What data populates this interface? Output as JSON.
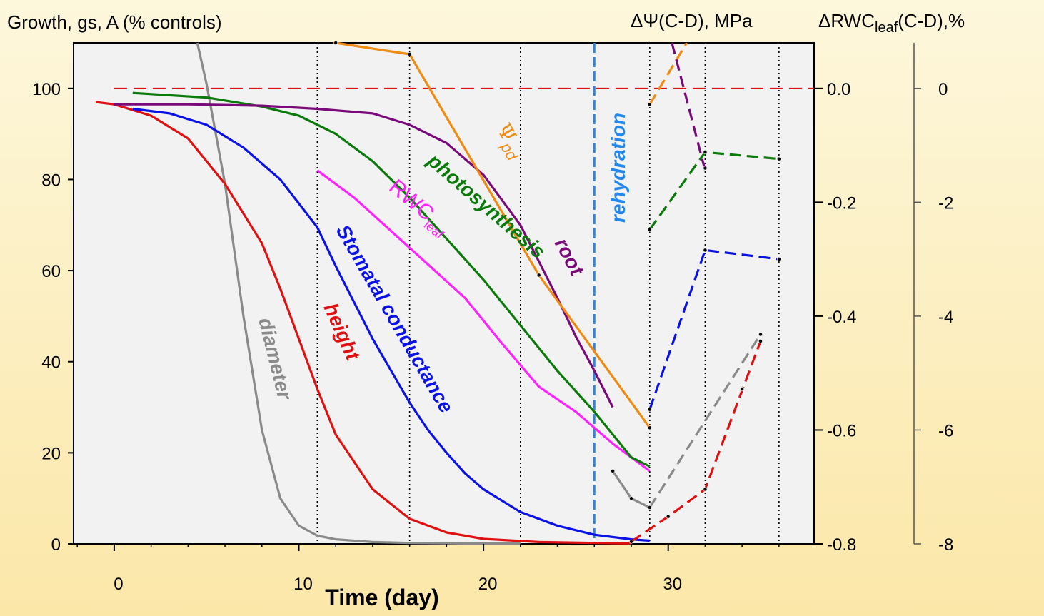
{
  "chart_data": {
    "type": "line",
    "left_axis_title": "Growth, gs, A (% controls)",
    "right_axis1_title": "ΔΨ(C-D), MPa",
    "right_axis2_title_main": "ΔRWC",
    "right_axis2_title_sub": "leaf",
    "right_axis2_title_tail": "(C-D),%",
    "xlabel": "Time (day)",
    "xlim": [
      -2.2,
      37.9
    ],
    "ylim": [
      0,
      110
    ],
    "y2lim": [
      -0.8,
      0.0
    ],
    "y3lim": [
      -8,
      0
    ],
    "x_ticks": [
      0,
      10,
      20,
      30
    ],
    "x_tick_labels": [
      "0",
      "10",
      "20",
      "30"
    ],
    "y_ticks": [
      0,
      20,
      40,
      60,
      80,
      100
    ],
    "y_tick_labels": [
      "0",
      "20",
      "40",
      "60",
      "80",
      "100"
    ],
    "y2_tick_labels": [
      "0.0",
      "-0.2",
      "-0.4",
      "-0.6",
      "-0.8"
    ],
    "y3_tick_labels": [
      "0",
      "-2",
      "-4",
      "-6",
      "-8"
    ],
    "sampling_days": [
      11,
      16,
      22,
      29,
      32,
      36
    ],
    "rehydration_day": 26,
    "control_level": 100,
    "series": [
      {
        "name": "diameter",
        "color": "#8a8a8a",
        "x": [
          4.5,
          5,
          6,
          7,
          8,
          9,
          10,
          11,
          12,
          14,
          16,
          19,
          22
        ],
        "y": [
          110,
          101,
          79,
          50,
          25,
          10,
          4,
          1.8,
          1,
          0.4,
          0.2,
          0.1,
          0.1
        ]
      },
      {
        "name": "height",
        "color": "#e01010",
        "x": [
          -1,
          0,
          2,
          4,
          6,
          8,
          9,
          10,
          11,
          12,
          14,
          16,
          18,
          20,
          23,
          26,
          28
        ],
        "y": [
          97,
          96.5,
          94,
          89,
          79,
          66,
          56,
          45,
          34,
          24,
          12,
          5.5,
          2.5,
          1.1,
          0.4,
          0.2,
          0.1
        ]
      },
      {
        "name": "Stomatal conductance",
        "color": "#0a12e6",
        "x": [
          1,
          3,
          5,
          7,
          9,
          11,
          12,
          13,
          14,
          15,
          16,
          17,
          18,
          19,
          20,
          22,
          24,
          26,
          28,
          29
        ],
        "y": [
          95.5,
          94.5,
          92,
          87,
          80,
          69.5,
          61,
          53,
          45,
          38,
          31,
          25,
          20,
          15.5,
          12,
          7,
          4,
          2,
          1,
          0.7
        ]
      },
      {
        "name": "RWC",
        "color": "#ff22ff",
        "x": [
          11,
          13,
          16,
          19,
          21,
          23,
          25,
          27,
          29
        ],
        "y": [
          82,
          76,
          65,
          54,
          44,
          34.5,
          29,
          22,
          16
        ]
      },
      {
        "name": "photosynthesis",
        "color": "#0a7a0a",
        "x": [
          1,
          5,
          8,
          10,
          12,
          14,
          16,
          18,
          20,
          22,
          24,
          26,
          27,
          28,
          29
        ],
        "y": [
          99,
          98,
          96,
          94,
          90,
          84,
          76,
          67,
          58,
          48,
          38,
          29,
          24,
          19,
          17
        ]
      },
      {
        "name": "root",
        "color": "#7a0a7a",
        "x": [
          0,
          4,
          8,
          11,
          14,
          16,
          18,
          20,
          22,
          23,
          24,
          25,
          26,
          26.5,
          27
        ],
        "y": [
          96.5,
          96.5,
          96.2,
          95.5,
          94.5,
          92,
          88,
          81,
          70,
          62,
          54,
          45.5,
          38,
          34,
          30
        ]
      },
      {
        "name": "Ψpd",
        "color": "#f08a10",
        "x": [
          12,
          16,
          23,
          29
        ],
        "y": [
          110,
          107.5,
          59,
          25.5
        ]
      }
    ],
    "post_rehydration": [
      {
        "color": "#f08a10",
        "x": [
          29,
          31
        ],
        "y": [
          96.5,
          110
        ]
      },
      {
        "color": "#7a0a7a",
        "x": [
          30.2,
          32
        ],
        "y": [
          110,
          82
        ]
      },
      {
        "color": "#0a7a0a",
        "x": [
          29,
          32,
          36
        ],
        "y": [
          69,
          86,
          84.5
        ]
      },
      {
        "color": "#0a12e6",
        "x": [
          29,
          32,
          36
        ],
        "y": [
          29.5,
          64.5,
          62.5
        ]
      },
      {
        "color": "#e01010",
        "x": [
          28,
          30,
          32,
          35
        ],
        "y": [
          0.5,
          6,
          12,
          44.5
        ]
      },
      {
        "color": "#8a8a8a",
        "x": [
          27,
          28,
          29,
          35
        ],
        "y": [
          16,
          10,
          8,
          46
        ],
        "solid_until": 2
      }
    ],
    "points": [
      [
        12,
        110
      ],
      [
        16,
        107.5
      ],
      [
        23,
        59
      ],
      [
        29,
        25.5
      ],
      [
        29,
        96.5
      ],
      [
        32,
        86
      ],
      [
        32,
        82.5
      ],
      [
        36,
        84.5
      ],
      [
        29,
        69
      ],
      [
        32,
        64.5
      ],
      [
        36,
        62.5
      ],
      [
        29,
        29.5
      ],
      [
        27,
        16
      ],
      [
        28,
        10
      ],
      [
        29,
        8
      ],
      [
        30,
        6
      ],
      [
        32,
        12
      ],
      [
        28,
        0.5
      ],
      [
        34,
        34
      ],
      [
        35,
        44.5
      ],
      [
        35,
        46
      ]
    ],
    "labels": {
      "diameter": "diameter",
      "height": "height",
      "stomatal": "Stomatal conductance",
      "rwc_main": "RWC",
      "rwc_sub": "leaf",
      "photosynthesis": "photosynthesis",
      "root": "root",
      "psi_main": "Ψ",
      "psi_sub": "pd",
      "rehydration": "rehydration"
    }
  }
}
